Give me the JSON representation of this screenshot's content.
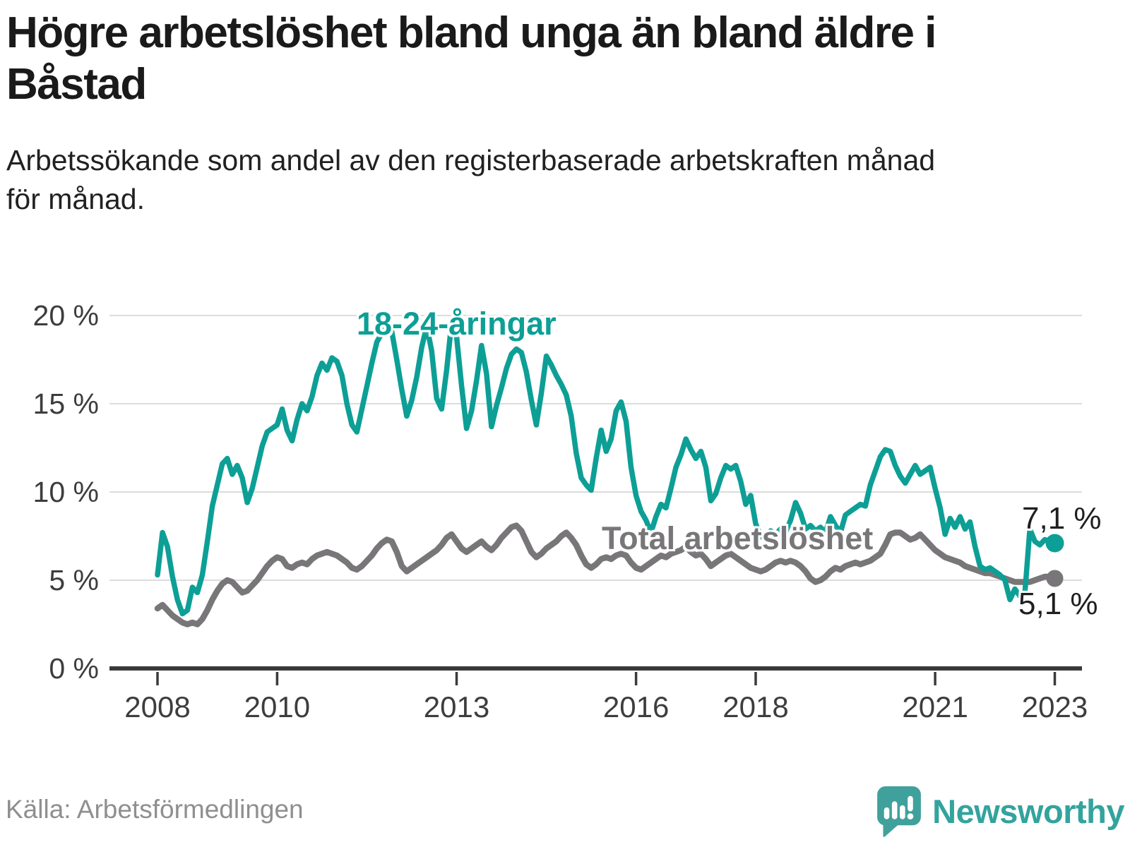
{
  "header": {
    "title": "Högre arbetslöshet bland unga än bland äldre i\nBåstad",
    "subtitle": "Arbetssökande som andel av den registerbaserade arbetskraften månad\nför månad."
  },
  "footer": {
    "source": "Källa: Arbetsförmedlingen",
    "brand": "Newsworthy"
  },
  "colors": {
    "youth_line": "#0d9f96",
    "total_line": "#787678",
    "axis": "#3a3a3a",
    "gridline": "#dcdcdc",
    "text_dark": "#1a1a1a",
    "tick_text": "#3d3d3d",
    "source_text": "#8f8f8f",
    "brand_teal": "#33a39d"
  },
  "chart_data": {
    "type": "line",
    "title": "Högre arbetslöshet bland unga än bland äldre i Båstad",
    "subtitle": "Arbetssökande som andel av den registerbaserade arbetskraften månad för månad.",
    "xlabel": "",
    "ylabel": "",
    "frequency": "monthly",
    "x_start": "2008-01",
    "x_end": "2023-01",
    "ylim": [
      0,
      20.5
    ],
    "grid": "horizontal",
    "legend_position": "inline-labels",
    "x_ticks": [
      2008,
      2010,
      2013,
      2016,
      2018,
      2021,
      2023
    ],
    "y_ticks": [
      20,
      15,
      10,
      5,
      0
    ],
    "y_tick_labels": [
      "20 %",
      "15 %",
      "10 %",
      "5 %",
      "0 %"
    ],
    "series": [
      {
        "name": "18-24-åringar",
        "color": "#0d9f96",
        "end_label": "7,1 %",
        "last_value": 7.1,
        "values": [
          5.3,
          7.7,
          6.9,
          5.2,
          3.9,
          3.1,
          3.3,
          4.6,
          4.3,
          5.3,
          7.2,
          9.2,
          10.4,
          11.6,
          11.9,
          11.0,
          11.5,
          10.8,
          9.4,
          10.2,
          11.4,
          12.6,
          13.4,
          13.6,
          13.8,
          14.7,
          13.5,
          12.9,
          14.1,
          15.0,
          14.6,
          15.4,
          16.6,
          17.3,
          16.9,
          17.6,
          17.4,
          16.6,
          15.0,
          13.8,
          13.4,
          14.7,
          16.0,
          17.3,
          18.5,
          19.0,
          19.8,
          19.1,
          17.5,
          15.8,
          14.3,
          15.2,
          16.5,
          18.2,
          19.4,
          18.0,
          15.3,
          14.7,
          16.9,
          19.6,
          18.8,
          16.0,
          13.6,
          14.6,
          16.3,
          18.3,
          16.7,
          13.7,
          14.9,
          15.9,
          17.0,
          17.8,
          18.1,
          17.9,
          16.8,
          15.2,
          13.8,
          15.6,
          17.7,
          17.2,
          16.6,
          16.1,
          15.5,
          14.3,
          12.2,
          10.8,
          10.4,
          10.1,
          11.9,
          13.5,
          12.3,
          13.0,
          14.6,
          15.1,
          14.0,
          11.4,
          9.8,
          8.9,
          8.4,
          7.7,
          8.6,
          9.3,
          9.1,
          10.2,
          11.4,
          12.1,
          13.0,
          12.4,
          11.9,
          12.3,
          11.4,
          9.5,
          9.9,
          10.8,
          11.5,
          11.3,
          11.5,
          10.6,
          9.3,
          9.8,
          8.2,
          7.5,
          7.3,
          7.8,
          7.6,
          7.9,
          7.7,
          8.4,
          9.4,
          8.8,
          7.9,
          8.1,
          7.8,
          8.0,
          7.7,
          8.6,
          8.1,
          7.7,
          8.7,
          8.9,
          9.1,
          9.3,
          9.2,
          10.4,
          11.2,
          12.0,
          12.4,
          12.3,
          11.5,
          10.9,
          10.5,
          11.0,
          11.5,
          11.0,
          11.2,
          11.4,
          10.2,
          9.1,
          7.6,
          8.5,
          8.0,
          8.6,
          7.9,
          8.3,
          6.9,
          5.8,
          5.6,
          5.7,
          5.5,
          5.3,
          5.0,
          3.9,
          4.5,
          4.1,
          4.3,
          7.9,
          7.2,
          7.0,
          7.3,
          7.2,
          7.1
        ]
      },
      {
        "name": "Total arbetslöshet",
        "color": "#787678",
        "end_label": "5,1 %",
        "last_value": 5.1,
        "values": [
          3.4,
          3.6,
          3.3,
          3.0,
          2.8,
          2.6,
          2.5,
          2.6,
          2.5,
          2.8,
          3.3,
          3.9,
          4.4,
          4.8,
          5.0,
          4.9,
          4.6,
          4.3,
          4.4,
          4.7,
          5.0,
          5.4,
          5.8,
          6.1,
          6.3,
          6.2,
          5.8,
          5.7,
          5.9,
          6.0,
          5.9,
          6.2,
          6.4,
          6.5,
          6.6,
          6.5,
          6.4,
          6.2,
          6.0,
          5.7,
          5.6,
          5.8,
          6.1,
          6.4,
          6.8,
          7.1,
          7.3,
          7.2,
          6.6,
          5.8,
          5.5,
          5.7,
          5.9,
          6.1,
          6.3,
          6.5,
          6.7,
          7.0,
          7.4,
          7.6,
          7.2,
          6.8,
          6.6,
          6.8,
          7.0,
          7.2,
          6.9,
          6.7,
          7.0,
          7.4,
          7.7,
          8.0,
          8.1,
          7.8,
          7.2,
          6.6,
          6.3,
          6.5,
          6.8,
          7.0,
          7.2,
          7.5,
          7.7,
          7.4,
          7.0,
          6.4,
          5.9,
          5.7,
          5.9,
          6.2,
          6.3,
          6.2,
          6.4,
          6.5,
          6.4,
          6.0,
          5.7,
          5.6,
          5.8,
          6.0,
          6.2,
          6.4,
          6.3,
          6.5,
          6.6,
          6.7,
          6.9,
          6.6,
          6.4,
          6.5,
          6.2,
          5.8,
          6.0,
          6.2,
          6.4,
          6.5,
          6.3,
          6.1,
          5.9,
          5.7,
          5.6,
          5.5,
          5.6,
          5.8,
          6.0,
          6.1,
          6.0,
          6.1,
          6.0,
          5.8,
          5.5,
          5.1,
          4.9,
          5.0,
          5.2,
          5.5,
          5.7,
          5.6,
          5.8,
          5.9,
          6.0,
          5.9,
          6.0,
          6.1,
          6.3,
          6.5,
          7.0,
          7.6,
          7.7,
          7.7,
          7.5,
          7.3,
          7.4,
          7.6,
          7.3,
          7.0,
          6.7,
          6.5,
          6.3,
          6.2,
          6.1,
          6.0,
          5.8,
          5.7,
          5.6,
          5.5,
          5.4,
          5.4,
          5.3,
          5.2,
          5.1,
          5.0,
          4.9,
          4.9,
          4.9,
          4.9,
          5.0,
          5.1,
          5.2,
          5.2,
          5.1
        ]
      }
    ]
  }
}
